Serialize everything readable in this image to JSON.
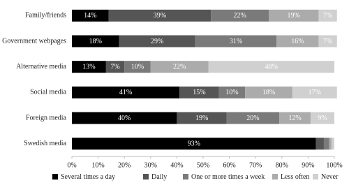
{
  "chart_data": {
    "type": "stacked-bar-horizontal",
    "categories": [
      "Family/friends",
      "Government webpages",
      "Alternative media",
      "Social media",
      "Foreign media",
      "Swedish media"
    ],
    "series": [
      {
        "name": "Several times a day",
        "color": "#000000",
        "values": [
          14,
          18,
          13,
          41,
          40,
          93
        ],
        "value_labels": [
          "14%",
          "18%",
          "13%",
          "41%",
          "40%",
          "93%"
        ]
      },
      {
        "name": "Daily",
        "color": "#555555",
        "values": [
          39,
          29,
          7,
          15,
          19,
          3
        ],
        "value_labels": [
          "39%",
          "29%",
          "7%",
          "15%",
          "19%",
          null
        ]
      },
      {
        "name": "One or more times a week",
        "color": "#7a7a7a",
        "values": [
          22,
          31,
          10,
          10,
          20,
          2
        ],
        "value_labels": [
          "22%",
          "31%",
          "10%",
          "10%",
          "20%",
          null
        ]
      },
      {
        "name": "Less often",
        "color": "#ababab",
        "values": [
          19,
          16,
          22,
          18,
          12,
          1
        ],
        "value_labels": [
          "19%",
          "16%",
          "22%",
          "18%",
          "12%",
          null
        ]
      },
      {
        "name": "Never",
        "color": "#d0d0d0",
        "values": [
          7,
          7,
          48,
          17,
          9,
          1
        ],
        "value_labels": [
          "7%",
          "7%",
          "48%",
          "17%",
          "9%",
          null
        ]
      }
    ],
    "xlim": [
      0,
      100
    ],
    "xticks": [
      {
        "value": 0,
        "label": "0%"
      },
      {
        "value": 10,
        "label": "10%"
      },
      {
        "value": 20,
        "label": "20%"
      },
      {
        "value": 30,
        "label": "30%"
      },
      {
        "value": 40,
        "label": "40%"
      },
      {
        "value": 50,
        "label": "50%"
      },
      {
        "value": 60,
        "label": "60%"
      },
      {
        "value": 70,
        "label": "70%"
      },
      {
        "value": 80,
        "label": "80%"
      },
      {
        "value": 90,
        "label": "90%"
      },
      {
        "value": 100,
        "label": "100%"
      }
    ],
    "grid": false,
    "legend": "bottom"
  }
}
